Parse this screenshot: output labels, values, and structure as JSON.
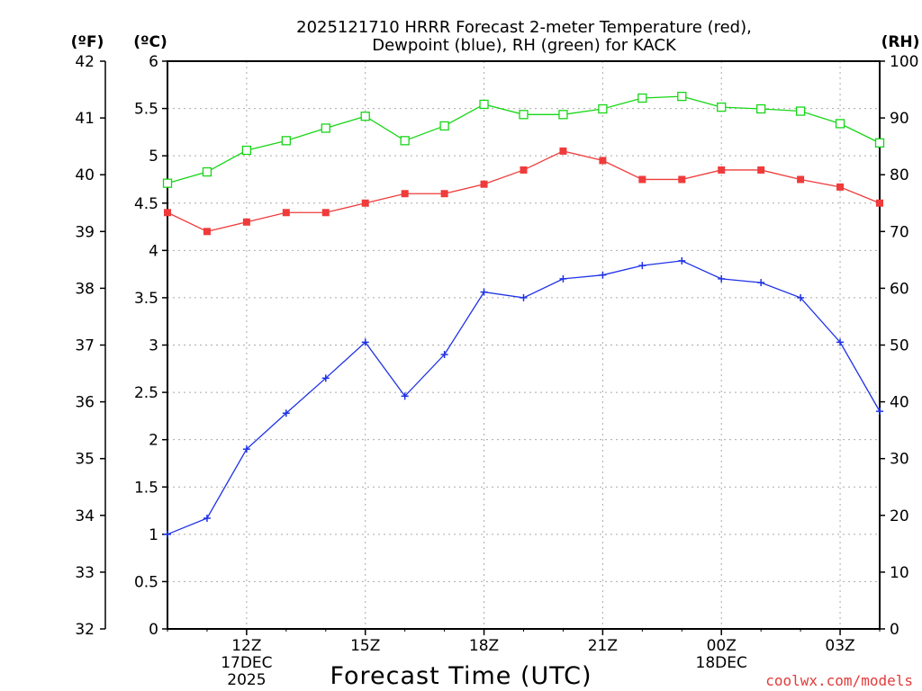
{
  "title_line1": "2025121710 HRRR Forecast 2-meter Temperature (red),",
  "title_line2": "Dewpoint (blue), RH (green) for KACK",
  "unit_f": "(ºF)",
  "unit_c": "(ºC)",
  "unit_rh": "(RH)",
  "xlabel": "Forecast Time (UTC)",
  "watermark": "coolwx.com/models",
  "colors": {
    "temperature": "#ef3b3b",
    "dewpoint": "#1e32e6",
    "rh": "#16d616",
    "grid": "#aaaaaa"
  },
  "chart_data": {
    "type": "line",
    "title": "2025121710 HRRR Forecast 2-meter Temperature (red), Dewpoint (blue), RH (green) for KACK",
    "x_hours": [
      10,
      11,
      12,
      13,
      14,
      15,
      16,
      17,
      18,
      19,
      20,
      21,
      22,
      23,
      24,
      25,
      26,
      27,
      28
    ],
    "xlim": [
      10,
      28
    ],
    "x_ticks": [
      {
        "hour": 12,
        "label": "12Z",
        "sub1": "17DEC",
        "sub2": "2025"
      },
      {
        "hour": 15,
        "label": "15Z",
        "sub1": "",
        "sub2": ""
      },
      {
        "hour": 18,
        "label": "18Z",
        "sub1": "",
        "sub2": ""
      },
      {
        "hour": 21,
        "label": "21Z",
        "sub1": "",
        "sub2": ""
      },
      {
        "hour": 24,
        "label": "00Z",
        "sub1": "18DEC",
        "sub2": ""
      },
      {
        "hour": 27,
        "label": "03Z",
        "sub1": "",
        "sub2": ""
      }
    ],
    "ylim_c": [
      0,
      6
    ],
    "ylim_f": [
      32,
      42
    ],
    "ylim_rh": [
      0,
      100
    ],
    "c_ticks": [
      "0",
      "0.5",
      "1",
      "1.5",
      "2",
      "2.5",
      "3",
      "3.5",
      "4",
      "4.5",
      "5",
      "5.5",
      "6"
    ],
    "f_ticks": [
      "32",
      "33",
      "34",
      "35",
      "36",
      "37",
      "38",
      "39",
      "40",
      "41",
      "42"
    ],
    "rh_ticks": [
      "0",
      "10",
      "20",
      "30",
      "40",
      "50",
      "60",
      "70",
      "80",
      "90",
      "100"
    ],
    "series": [
      {
        "name": "Temperature",
        "units": "C",
        "color": "#ef3b3b",
        "marker": "filled-square",
        "values": [
          4.4,
          4.2,
          4.3,
          4.4,
          4.4,
          4.5,
          4.6,
          4.6,
          4.7,
          4.85,
          5.05,
          4.95,
          4.75,
          4.75,
          4.85,
          4.85,
          4.75,
          4.67,
          4.5
        ]
      },
      {
        "name": "Dewpoint",
        "units": "C",
        "color": "#1e32e6",
        "marker": "plus",
        "values": [
          1.0,
          1.17,
          1.9,
          2.28,
          2.65,
          3.03,
          2.46,
          2.9,
          3.56,
          3.5,
          3.7,
          3.74,
          3.84,
          3.89,
          3.7,
          3.66,
          3.5,
          3.03,
          2.3
        ]
      },
      {
        "name": "RH",
        "units": "%",
        "color": "#16d616",
        "marker": "open-square",
        "values": [
          78.5,
          80.5,
          84.3,
          86,
          88.2,
          90.3,
          86,
          88.6,
          92.4,
          90.6,
          90.6,
          91.6,
          93.5,
          93.8,
          91.9,
          91.6,
          91.2,
          89,
          85.6
        ]
      }
    ]
  }
}
